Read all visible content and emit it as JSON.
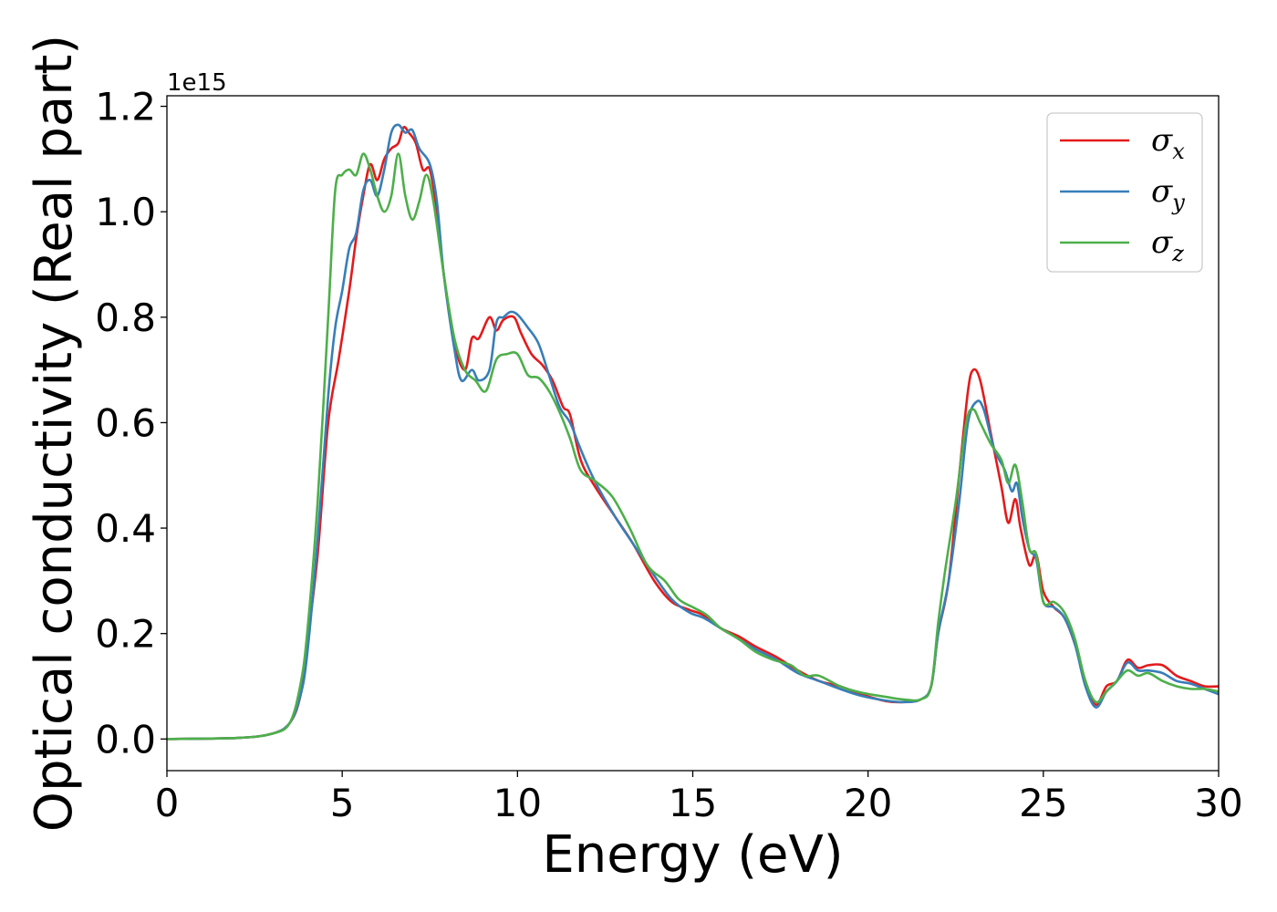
{
  "chart_data": {
    "type": "line",
    "xlabel": "Energy (eV)",
    "ylabel": "Optical conductivity (Real part)",
    "y_offset_label": "1e15",
    "xlim": [
      0,
      30
    ],
    "ylim": [
      -0.06,
      1.22
    ],
    "x_ticks": [
      0,
      5,
      10,
      15,
      20,
      25,
      30
    ],
    "x_tick_labels": [
      "0",
      "5",
      "10",
      "15",
      "20",
      "25",
      "30"
    ],
    "y_ticks": [
      0.0,
      0.2,
      0.4,
      0.6,
      0.8,
      1.0,
      1.2
    ],
    "y_tick_labels": [
      "0.0",
      "0.2",
      "0.4",
      "0.6",
      "0.8",
      "1.0",
      "1.2"
    ],
    "grid": false,
    "legend_position": "top-right",
    "series": [
      {
        "name": "σx",
        "symbol": "σ",
        "subscript": "x",
        "color": "#e41a1c",
        "points": [
          [
            0,
            0
          ],
          [
            2,
            0.002
          ],
          [
            3,
            0.01
          ],
          [
            3.5,
            0.03
          ],
          [
            3.8,
            0.08
          ],
          [
            4.0,
            0.18
          ],
          [
            4.3,
            0.35
          ],
          [
            4.6,
            0.6
          ],
          [
            4.9,
            0.72
          ],
          [
            5.2,
            0.85
          ],
          [
            5.4,
            0.95
          ],
          [
            5.6,
            1.03
          ],
          [
            5.8,
            1.09
          ],
          [
            6.0,
            1.06
          ],
          [
            6.2,
            1.1
          ],
          [
            6.4,
            1.12
          ],
          [
            6.6,
            1.13
          ],
          [
            6.75,
            1.16
          ],
          [
            6.9,
            1.15
          ],
          [
            7.1,
            1.13
          ],
          [
            7.3,
            1.08
          ],
          [
            7.5,
            1.08
          ],
          [
            7.7,
            1.0
          ],
          [
            7.9,
            0.88
          ],
          [
            8.2,
            0.75
          ],
          [
            8.5,
            0.7
          ],
          [
            8.7,
            0.76
          ],
          [
            8.9,
            0.76
          ],
          [
            9.2,
            0.8
          ],
          [
            9.4,
            0.775
          ],
          [
            9.6,
            0.795
          ],
          [
            9.9,
            0.8
          ],
          [
            10.1,
            0.77
          ],
          [
            10.4,
            0.73
          ],
          [
            10.7,
            0.71
          ],
          [
            11.0,
            0.68
          ],
          [
            11.3,
            0.63
          ],
          [
            11.5,
            0.615
          ],
          [
            11.8,
            0.53
          ],
          [
            12.2,
            0.48
          ],
          [
            12.8,
            0.42
          ],
          [
            13.3,
            0.37
          ],
          [
            13.9,
            0.3
          ],
          [
            14.4,
            0.26
          ],
          [
            14.9,
            0.245
          ],
          [
            15.3,
            0.235
          ],
          [
            15.8,
            0.21
          ],
          [
            16.3,
            0.195
          ],
          [
            16.8,
            0.175
          ],
          [
            17.4,
            0.155
          ],
          [
            18.0,
            0.13
          ],
          [
            18.6,
            0.11
          ],
          [
            19.2,
            0.1
          ],
          [
            19.8,
            0.085
          ],
          [
            20.5,
            0.072
          ],
          [
            21.0,
            0.07
          ],
          [
            21.5,
            0.075
          ],
          [
            21.8,
            0.1
          ],
          [
            22.0,
            0.2
          ],
          [
            22.3,
            0.3
          ],
          [
            22.6,
            0.5
          ],
          [
            22.85,
            0.66
          ],
          [
            23.0,
            0.7
          ],
          [
            23.2,
            0.68
          ],
          [
            23.5,
            0.58
          ],
          [
            23.8,
            0.48
          ],
          [
            24.0,
            0.41
          ],
          [
            24.2,
            0.455
          ],
          [
            24.35,
            0.4
          ],
          [
            24.6,
            0.33
          ],
          [
            24.8,
            0.35
          ],
          [
            25.0,
            0.28
          ],
          [
            25.3,
            0.25
          ],
          [
            25.6,
            0.23
          ],
          [
            25.9,
            0.18
          ],
          [
            26.2,
            0.11
          ],
          [
            26.5,
            0.065
          ],
          [
            26.8,
            0.1
          ],
          [
            27.1,
            0.11
          ],
          [
            27.4,
            0.15
          ],
          [
            27.7,
            0.135
          ],
          [
            28.0,
            0.14
          ],
          [
            28.4,
            0.14
          ],
          [
            28.8,
            0.12
          ],
          [
            29.2,
            0.11
          ],
          [
            29.6,
            0.1
          ],
          [
            30,
            0.1
          ]
        ]
      },
      {
        "name": "σy",
        "symbol": "σ",
        "subscript": "y",
        "color": "#377eb8",
        "points": [
          [
            0,
            0
          ],
          [
            2,
            0.002
          ],
          [
            3,
            0.01
          ],
          [
            3.5,
            0.03
          ],
          [
            3.8,
            0.08
          ],
          [
            4.0,
            0.16
          ],
          [
            4.3,
            0.38
          ],
          [
            4.6,
            0.65
          ],
          [
            4.8,
            0.78
          ],
          [
            5.0,
            0.85
          ],
          [
            5.2,
            0.93
          ],
          [
            5.4,
            0.96
          ],
          [
            5.6,
            1.04
          ],
          [
            5.8,
            1.06
          ],
          [
            6.0,
            1.03
          ],
          [
            6.2,
            1.08
          ],
          [
            6.4,
            1.15
          ],
          [
            6.6,
            1.165
          ],
          [
            6.8,
            1.15
          ],
          [
            7.0,
            1.155
          ],
          [
            7.2,
            1.12
          ],
          [
            7.5,
            1.09
          ],
          [
            7.7,
            1.02
          ],
          [
            7.9,
            0.88
          ],
          [
            8.2,
            0.74
          ],
          [
            8.4,
            0.68
          ],
          [
            8.7,
            0.7
          ],
          [
            8.9,
            0.68
          ],
          [
            9.2,
            0.7
          ],
          [
            9.4,
            0.79
          ],
          [
            9.6,
            0.8
          ],
          [
            9.8,
            0.81
          ],
          [
            10.0,
            0.805
          ],
          [
            10.3,
            0.78
          ],
          [
            10.6,
            0.75
          ],
          [
            10.9,
            0.69
          ],
          [
            11.2,
            0.63
          ],
          [
            11.5,
            0.6
          ],
          [
            11.8,
            0.55
          ],
          [
            12.2,
            0.49
          ],
          [
            12.8,
            0.42
          ],
          [
            13.3,
            0.37
          ],
          [
            13.9,
            0.31
          ],
          [
            14.4,
            0.265
          ],
          [
            14.9,
            0.24
          ],
          [
            15.3,
            0.23
          ],
          [
            15.8,
            0.21
          ],
          [
            16.3,
            0.19
          ],
          [
            16.8,
            0.17
          ],
          [
            17.4,
            0.15
          ],
          [
            18.0,
            0.125
          ],
          [
            18.6,
            0.11
          ],
          [
            19.2,
            0.095
          ],
          [
            19.8,
            0.082
          ],
          [
            20.5,
            0.073
          ],
          [
            21.0,
            0.07
          ],
          [
            21.5,
            0.075
          ],
          [
            21.8,
            0.1
          ],
          [
            22.0,
            0.2
          ],
          [
            22.3,
            0.3
          ],
          [
            22.6,
            0.45
          ],
          [
            22.85,
            0.6
          ],
          [
            23.1,
            0.64
          ],
          [
            23.3,
            0.625
          ],
          [
            23.6,
            0.55
          ],
          [
            23.9,
            0.51
          ],
          [
            24.1,
            0.47
          ],
          [
            24.25,
            0.485
          ],
          [
            24.4,
            0.42
          ],
          [
            24.6,
            0.36
          ],
          [
            24.8,
            0.34
          ],
          [
            25.0,
            0.26
          ],
          [
            25.3,
            0.25
          ],
          [
            25.6,
            0.23
          ],
          [
            25.9,
            0.18
          ],
          [
            26.2,
            0.1
          ],
          [
            26.5,
            0.06
          ],
          [
            26.8,
            0.09
          ],
          [
            27.1,
            0.11
          ],
          [
            27.4,
            0.145
          ],
          [
            27.7,
            0.13
          ],
          [
            28.0,
            0.13
          ],
          [
            28.4,
            0.125
          ],
          [
            28.8,
            0.11
          ],
          [
            29.2,
            0.105
          ],
          [
            29.6,
            0.095
          ],
          [
            30,
            0.085
          ]
        ]
      },
      {
        "name": "σz",
        "symbol": "σ",
        "subscript": "z",
        "color": "#4daf4a",
        "points": [
          [
            0,
            0
          ],
          [
            2,
            0.002
          ],
          [
            3,
            0.01
          ],
          [
            3.5,
            0.03
          ],
          [
            3.8,
            0.1
          ],
          [
            4.0,
            0.2
          ],
          [
            4.3,
            0.45
          ],
          [
            4.6,
            0.8
          ],
          [
            4.8,
            1.04
          ],
          [
            5.0,
            1.07
          ],
          [
            5.2,
            1.08
          ],
          [
            5.4,
            1.07
          ],
          [
            5.6,
            1.11
          ],
          [
            5.8,
            1.08
          ],
          [
            6.0,
            1.03
          ],
          [
            6.2,
            1.0
          ],
          [
            6.4,
            1.03
          ],
          [
            6.6,
            1.11
          ],
          [
            6.8,
            1.03
          ],
          [
            7.0,
            0.985
          ],
          [
            7.2,
            1.02
          ],
          [
            7.4,
            1.07
          ],
          [
            7.6,
            1.02
          ],
          [
            7.9,
            0.88
          ],
          [
            8.2,
            0.76
          ],
          [
            8.5,
            0.7
          ],
          [
            8.8,
            0.68
          ],
          [
            9.1,
            0.66
          ],
          [
            9.4,
            0.72
          ],
          [
            9.7,
            0.73
          ],
          [
            10.0,
            0.73
          ],
          [
            10.3,
            0.69
          ],
          [
            10.6,
            0.685
          ],
          [
            10.9,
            0.66
          ],
          [
            11.2,
            0.62
          ],
          [
            11.5,
            0.57
          ],
          [
            11.8,
            0.51
          ],
          [
            12.2,
            0.49
          ],
          [
            12.7,
            0.46
          ],
          [
            13.2,
            0.4
          ],
          [
            13.7,
            0.33
          ],
          [
            14.2,
            0.3
          ],
          [
            14.6,
            0.265
          ],
          [
            15.0,
            0.25
          ],
          [
            15.4,
            0.235
          ],
          [
            15.8,
            0.21
          ],
          [
            16.3,
            0.19
          ],
          [
            16.8,
            0.165
          ],
          [
            17.3,
            0.15
          ],
          [
            17.8,
            0.14
          ],
          [
            18.2,
            0.12
          ],
          [
            18.6,
            0.12
          ],
          [
            19.2,
            0.1
          ],
          [
            19.8,
            0.088
          ],
          [
            20.5,
            0.08
          ],
          [
            21.0,
            0.075
          ],
          [
            21.5,
            0.075
          ],
          [
            21.8,
            0.1
          ],
          [
            22.0,
            0.22
          ],
          [
            22.2,
            0.32
          ],
          [
            22.5,
            0.45
          ],
          [
            22.8,
            0.6
          ],
          [
            23.0,
            0.625
          ],
          [
            23.2,
            0.6
          ],
          [
            23.5,
            0.56
          ],
          [
            23.8,
            0.53
          ],
          [
            24.0,
            0.485
          ],
          [
            24.2,
            0.52
          ],
          [
            24.4,
            0.45
          ],
          [
            24.6,
            0.36
          ],
          [
            24.8,
            0.35
          ],
          [
            25.0,
            0.26
          ],
          [
            25.3,
            0.26
          ],
          [
            25.6,
            0.24
          ],
          [
            25.9,
            0.19
          ],
          [
            26.2,
            0.11
          ],
          [
            26.5,
            0.07
          ],
          [
            26.8,
            0.09
          ],
          [
            27.1,
            0.11
          ],
          [
            27.4,
            0.13
          ],
          [
            27.7,
            0.12
          ],
          [
            28.0,
            0.125
          ],
          [
            28.4,
            0.11
          ],
          [
            28.8,
            0.1
          ],
          [
            29.2,
            0.095
          ],
          [
            29.6,
            0.095
          ],
          [
            30,
            0.09
          ]
        ]
      }
    ]
  }
}
